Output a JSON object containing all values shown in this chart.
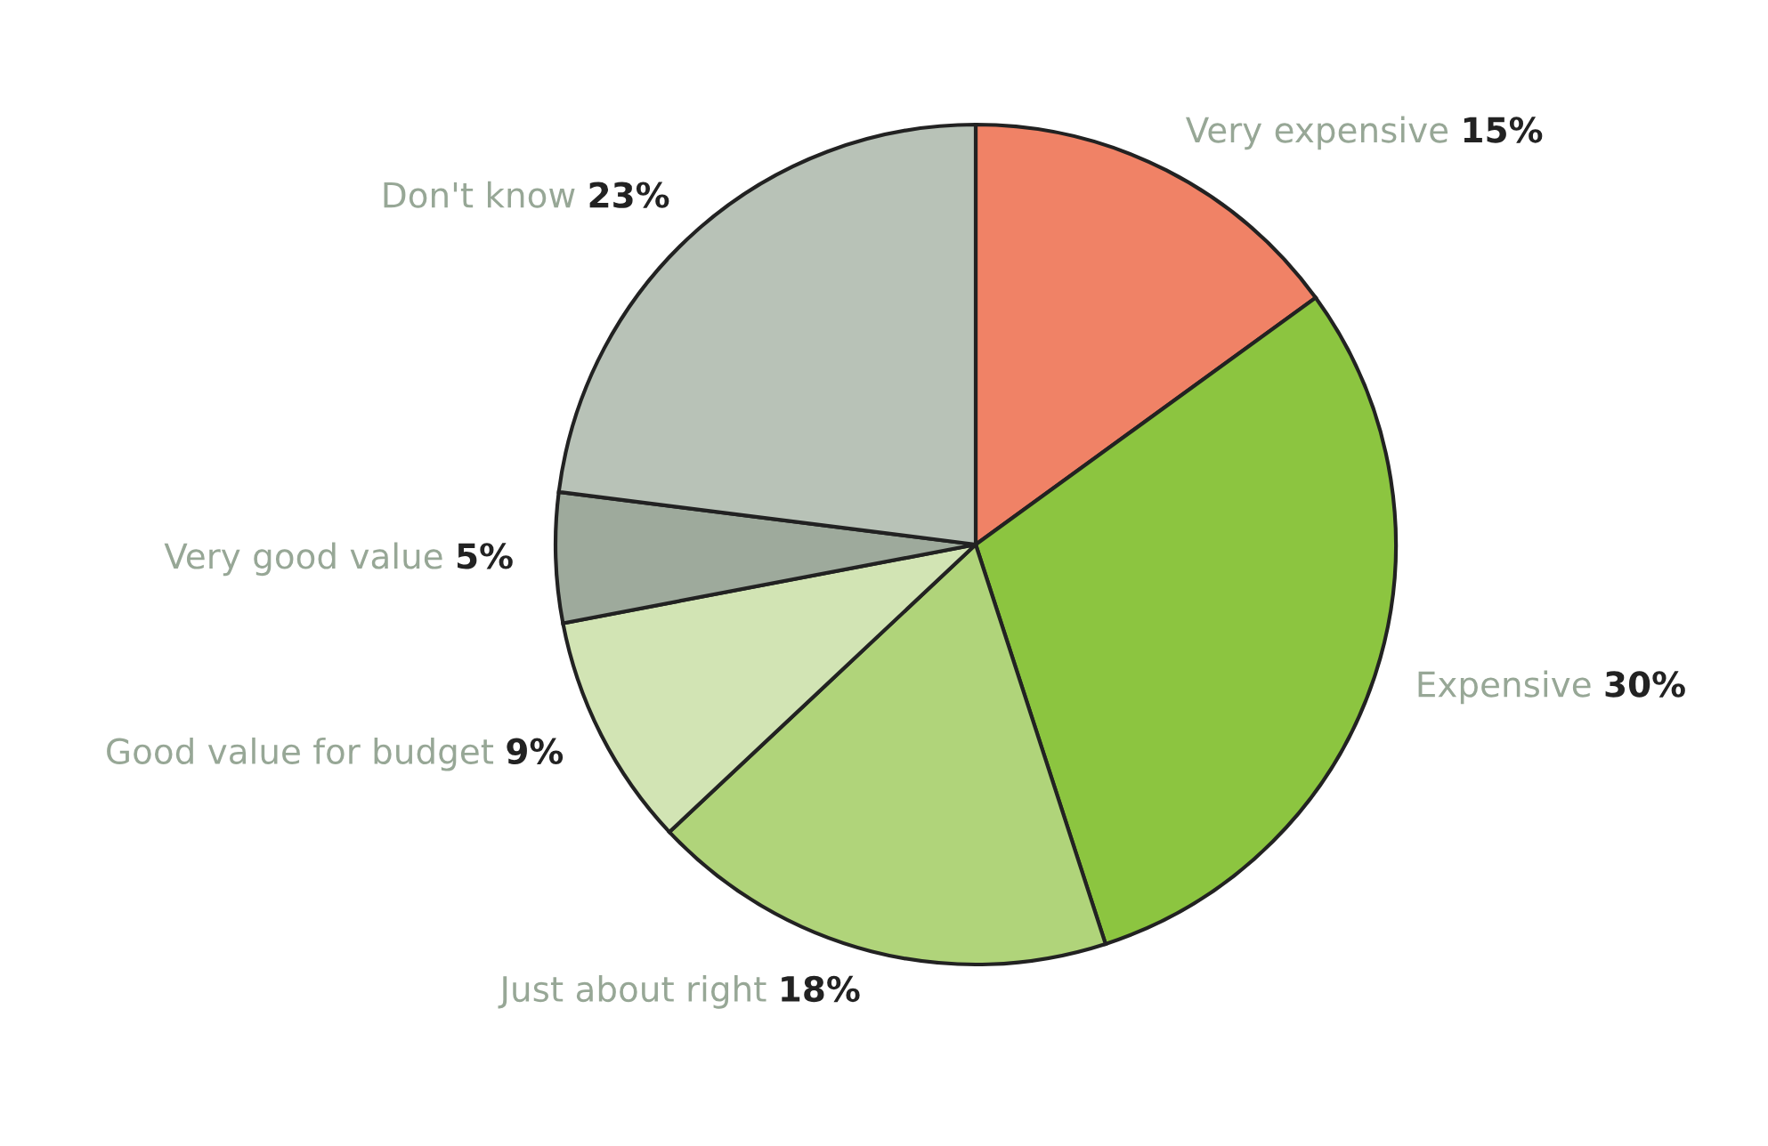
{
  "chart_data": {
    "type": "pie",
    "categories": [
      "Very expensive",
      "Expensive",
      "Just about right",
      "Good value for budget",
      "Very good value",
      "Don't know"
    ],
    "values": [
      15,
      30,
      18,
      9,
      5,
      23
    ],
    "colors": [
      "#f08266",
      "#8cc540",
      "#b0d47a",
      "#d2e4b4",
      "#9eaa9c",
      "#b8c2b7"
    ],
    "value_labels": [
      "15%",
      "30%",
      "18%",
      "9%",
      "5%",
      "23%"
    ],
    "legend": false
  }
}
